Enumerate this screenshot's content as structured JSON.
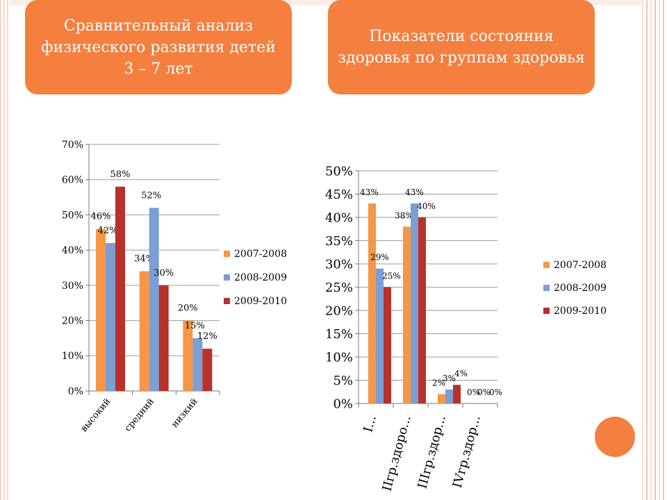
{
  "slide": {
    "title_left": "Сравнительный анализ физического развития детей 3 – 7 лет",
    "title_right": "Показатели состояния здоровья по группам здоровья"
  },
  "colors": {
    "accent": "#f47f3e",
    "series": [
      "#f79646",
      "#7b9fd4",
      "#b8312a"
    ]
  },
  "chart_data": [
    {
      "type": "bar",
      "categories": [
        "высокий",
        "средний",
        "низкий"
      ],
      "series": [
        {
          "name": "2007-2008",
          "values": [
            46,
            34,
            20
          ],
          "labels": [
            "46%",
            "34%",
            "20%"
          ]
        },
        {
          "name": "2008-2009",
          "values": [
            42,
            52,
            15
          ],
          "labels": [
            "42%",
            "52%",
            "15%"
          ]
        },
        {
          "name": "2009-2010",
          "values": [
            58,
            30,
            12
          ],
          "labels": [
            "58%",
            "30%",
            "12%"
          ]
        }
      ],
      "ylim": [
        0,
        70
      ],
      "yticks": [
        "0%",
        "10%",
        "20%",
        "30%",
        "40%",
        "50%",
        "60%",
        "70%"
      ],
      "grid": true,
      "legend": "right"
    },
    {
      "type": "bar",
      "categories": [
        "I...",
        "IIгр.здоро...",
        "IIIгр.здор...",
        "IVгр.здор..."
      ],
      "series": [
        {
          "name": "2007-2008",
          "values": [
            43,
            38,
            2,
            0
          ],
          "labels": [
            "43%",
            "38%",
            "2%",
            "0%"
          ]
        },
        {
          "name": "2008-2009",
          "values": [
            29,
            43,
            3,
            0
          ],
          "labels": [
            "29%",
            "43%",
            "3%",
            "0%"
          ]
        },
        {
          "name": "2009-2010",
          "values": [
            25,
            40,
            4,
            0
          ],
          "labels": [
            "25%",
            "40%",
            "4%",
            "0%"
          ]
        }
      ],
      "ylim": [
        0,
        50
      ],
      "yticks": [
        "0%",
        "5%",
        "10%",
        "15%",
        "20%",
        "25%",
        "30%",
        "35%",
        "40%",
        "45%",
        "50%"
      ],
      "grid": true,
      "legend": "right"
    }
  ]
}
